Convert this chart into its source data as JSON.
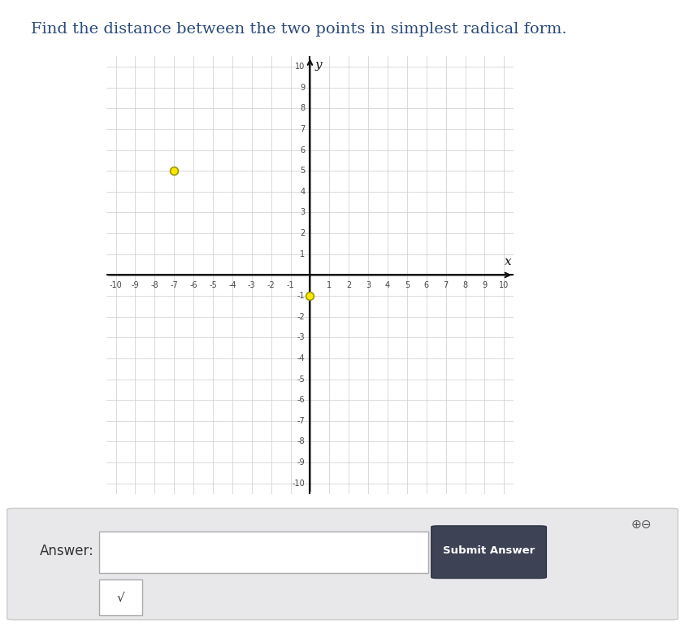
{
  "title": "Find the distance between the two points in simplest radical form.",
  "point1": [
    -7,
    5
  ],
  "point2": [
    0,
    -1
  ],
  "point_color": "#FFE800",
  "point_edge_color": "#999900",
  "point_size": 50,
  "xlim": [
    -10.5,
    10.5
  ],
  "ylim": [
    -10.5,
    10.5
  ],
  "grid_color": "#cccccc",
  "axis_color": "#111111",
  "tick_color": "#444444",
  "background_color": "#ffffff",
  "figure_bg": "#ffffff",
  "panel_bg": "#e8e8eb",
  "title_color": "#2a4a7a",
  "title_fontsize": 14,
  "tick_fontsize": 7,
  "answer_label": "Answer:",
  "submit_label": "Submit Answer",
  "sqrt_symbol": "√"
}
